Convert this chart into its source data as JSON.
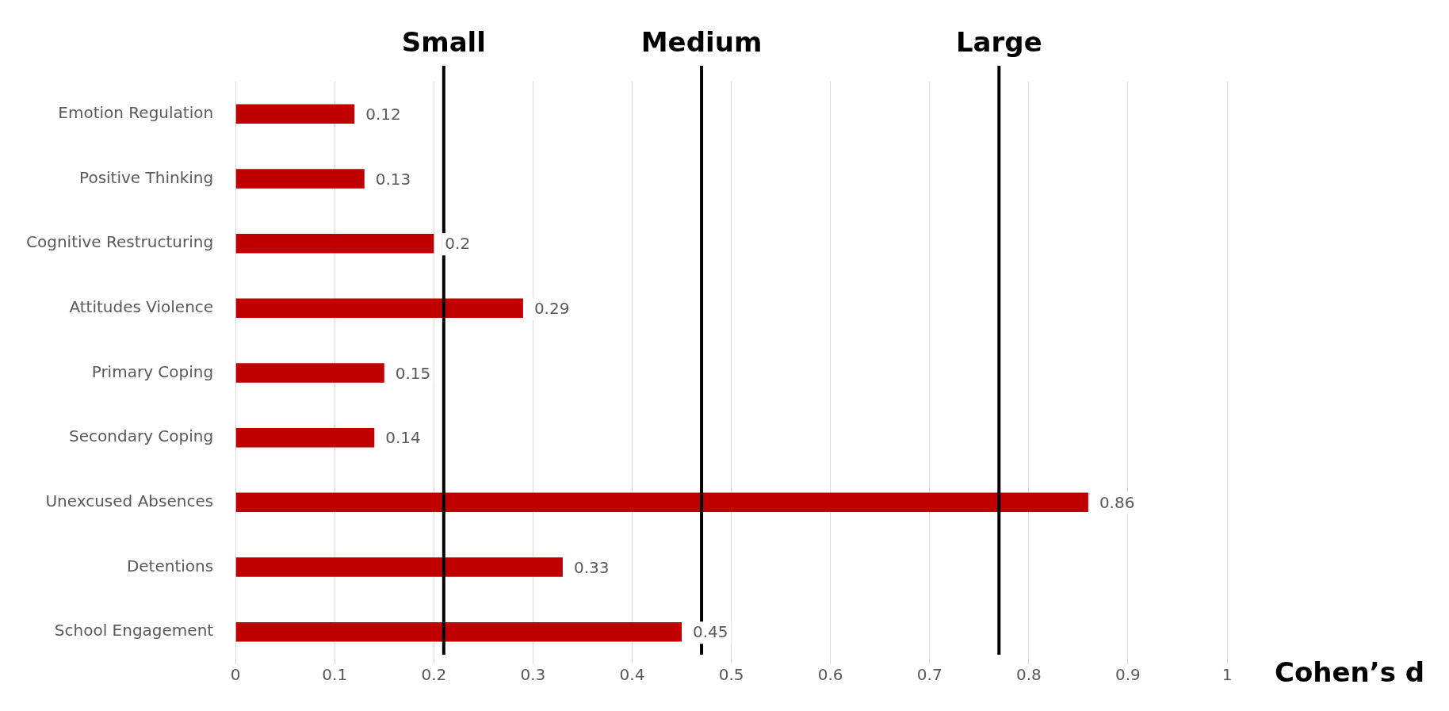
{
  "chart_data": {
    "type": "bar",
    "orientation": "horizontal",
    "xlabel": "Cohen’s d",
    "categories": [
      "Emotion Regulation",
      "Positive Thinking",
      "Cognitive Restructuring",
      "Attitudes Violence",
      "Primary Coping",
      "Secondary Coping",
      "Unexcused Absences",
      "Detentions",
      "School Engagement"
    ],
    "values": [
      0.12,
      0.13,
      0.2,
      0.29,
      0.15,
      0.14,
      0.86,
      0.33,
      0.45
    ],
    "color": "#c00000",
    "xlim": [
      0,
      1
    ],
    "xticks": [
      0,
      0.1,
      0.2,
      0.3,
      0.4,
      0.5,
      0.6,
      0.7,
      0.8,
      0.9,
      1
    ],
    "grid": "x",
    "data_labels": true,
    "legend": false,
    "ref_lines": [
      {
        "axis": "x",
        "value": 0.21,
        "label": "Small",
        "color": "#000000"
      },
      {
        "axis": "x",
        "value": 0.47,
        "label": "Medium",
        "color": "#000000"
      },
      {
        "axis": "x",
        "value": 0.77,
        "label": "Large",
        "color": "#000000"
      }
    ]
  }
}
